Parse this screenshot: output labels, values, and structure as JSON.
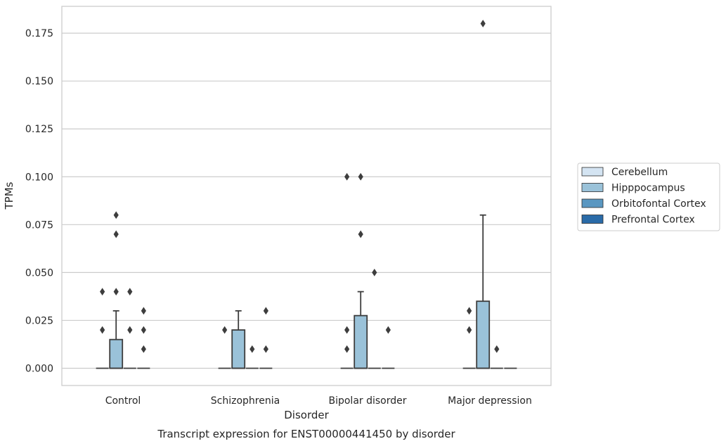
{
  "chart_data": {
    "type": "box",
    "title": "",
    "caption": "Transcript expression for ENST00000441450 by disorder",
    "xlabel": "Disorder",
    "ylabel": "TPMs",
    "ylim": [
      -0.009,
      0.189
    ],
    "yticks": [
      0.0,
      0.025,
      0.05,
      0.075,
      0.1,
      0.125,
      0.15,
      0.175
    ],
    "ytick_labels": [
      "0.000",
      "0.025",
      "0.050",
      "0.075",
      "0.100",
      "0.125",
      "0.150",
      "0.175"
    ],
    "grid": true,
    "legend_placement": "right",
    "categories": [
      "Control",
      "Schizophrenia",
      "Bipolar disorder",
      "Major depression"
    ],
    "series": [
      {
        "name": "Cerebellum",
        "color": "#d4e4f2",
        "boxes": [
          {
            "q1": 0,
            "median": 0,
            "q3": 0,
            "whislo": 0,
            "whishi": 0,
            "fliers": [
              0.02,
              0.04
            ]
          },
          {
            "q1": 0,
            "median": 0,
            "q3": 0,
            "whislo": 0,
            "whishi": 0,
            "fliers": [
              0.02
            ]
          },
          {
            "q1": 0,
            "median": 0,
            "q3": 0,
            "whislo": 0,
            "whishi": 0,
            "fliers": [
              0.01,
              0.02,
              0.1
            ]
          },
          {
            "q1": 0,
            "median": 0,
            "q3": 0,
            "whislo": 0,
            "whishi": 0,
            "fliers": [
              0.02,
              0.03
            ]
          }
        ]
      },
      {
        "name": "Hipppocampus",
        "color": "#9ac2d9",
        "boxes": [
          {
            "q1": 0,
            "median": 0,
            "q3": 0.015,
            "whislo": 0,
            "whishi": 0.03,
            "fliers": [
              0.04,
              0.07,
              0.08
            ]
          },
          {
            "q1": 0,
            "median": 0,
            "q3": 0.02,
            "whislo": 0,
            "whishi": 0.03,
            "fliers": []
          },
          {
            "q1": 0,
            "median": 0,
            "q3": 0.0275,
            "whislo": 0,
            "whishi": 0.04,
            "fliers": [
              0.07,
              0.1
            ]
          },
          {
            "q1": 0,
            "median": 0,
            "q3": 0.035,
            "whislo": 0,
            "whishi": 0.08,
            "fliers": [
              0.18
            ]
          }
        ]
      },
      {
        "name": "Orbitofontal Cortex",
        "color": "#5a97c1",
        "boxes": [
          {
            "q1": 0,
            "median": 0,
            "q3": 0,
            "whislo": 0,
            "whishi": 0,
            "fliers": [
              0.02,
              0.04
            ]
          },
          {
            "q1": 0,
            "median": 0,
            "q3": 0,
            "whislo": 0,
            "whishi": 0,
            "fliers": [
              0.01
            ]
          },
          {
            "q1": 0,
            "median": 0,
            "q3": 0,
            "whislo": 0,
            "whishi": 0,
            "fliers": [
              0.05
            ]
          },
          {
            "q1": 0,
            "median": 0,
            "q3": 0,
            "whislo": 0,
            "whishi": 0,
            "fliers": [
              0.01
            ]
          }
        ]
      },
      {
        "name": "Prefrontal Cortex",
        "color": "#2a6ba8",
        "boxes": [
          {
            "q1": 0,
            "median": 0,
            "q3": 0,
            "whislo": 0,
            "whishi": 0,
            "fliers": [
              0.01,
              0.02,
              0.03
            ]
          },
          {
            "q1": 0,
            "median": 0,
            "q3": 0,
            "whislo": 0,
            "whishi": 0,
            "fliers": [
              0.01,
              0.03
            ]
          },
          {
            "q1": 0,
            "median": 0,
            "q3": 0,
            "whislo": 0,
            "whishi": 0,
            "fliers": [
              0.02
            ]
          },
          {
            "q1": 0,
            "median": 0,
            "q3": 0,
            "whislo": 0,
            "whishi": 0,
            "fliers": []
          }
        ]
      }
    ]
  }
}
